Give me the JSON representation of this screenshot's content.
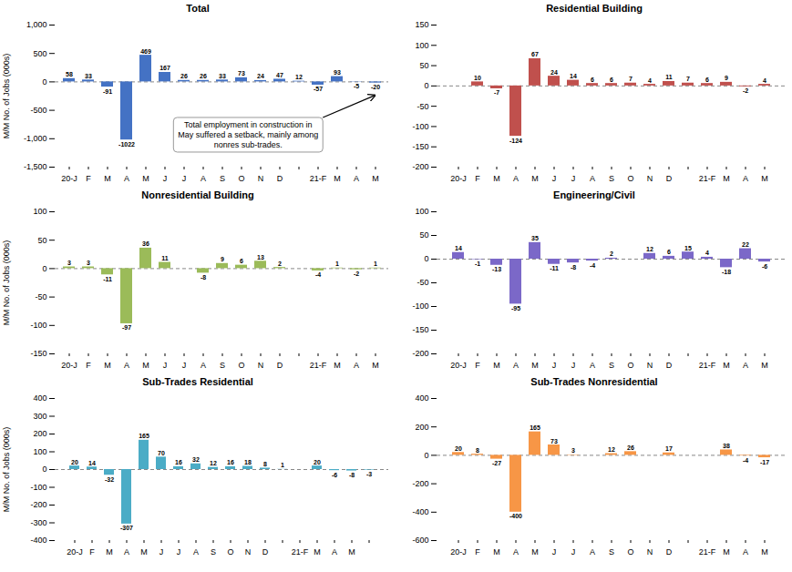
{
  "chart_data": [
    {
      "type": "bar",
      "title": "Total",
      "categories": [
        "20-J",
        "F",
        "M",
        "A",
        "M",
        "J",
        "J",
        "A",
        "S",
        "O",
        "N",
        "D",
        null,
        "21-F",
        "M",
        "A",
        "M"
      ],
      "values": [
        58,
        33,
        -91,
        -1022,
        469,
        167,
        26,
        26,
        33,
        73,
        24,
        47,
        12,
        -57,
        93,
        -5,
        -20
      ],
      "color": "#4472C4",
      "ylim": [
        -1500,
        1000
      ],
      "yticks": [
        {
          "value": -1500,
          "label": "-1,500"
        },
        {
          "value": -1000,
          "label": "-1,000"
        },
        -500,
        0,
        500,
        {
          "value": 1000,
          "label": "1,000"
        }
      ],
      "ylabel": "M/M No. of Jobs (000s)",
      "data_labels": true,
      "grid": false,
      "annotation": "Total employment in construction in\nMay suffered a setback, mainly among\nnonres sub-trades."
    },
    {
      "type": "bar",
      "title": "Residential Building",
      "categories": [
        "20-J",
        "F",
        "M",
        "A",
        "M",
        "J",
        "J",
        "A",
        "S",
        "O",
        "N",
        "D",
        null,
        "21-F",
        "M",
        "A",
        "M"
      ],
      "values": [
        0,
        10,
        -7,
        -124,
        67,
        24,
        14,
        6,
        6,
        7,
        4,
        11,
        7,
        6,
        9,
        -2,
        4
      ],
      "color": "#C0504D",
      "ylim": [
        -200,
        150
      ],
      "yticks": [
        -200,
        -150,
        -100,
        -50,
        0,
        50,
        100,
        150
      ],
      "data_labels": true,
      "grid": false
    },
    {
      "type": "bar",
      "title": "Nonresidential Building",
      "categories": [
        "20-J",
        "F",
        "M",
        "A",
        "M",
        "J",
        "J",
        "A",
        "S",
        "O",
        "N",
        "D",
        null,
        "21-F",
        "M",
        "A",
        "M"
      ],
      "values": [
        3,
        3,
        -11,
        -97,
        36,
        11,
        0,
        -8,
        9,
        6,
        13,
        2,
        0,
        -4,
        1,
        -2,
        1
      ],
      "color": "#9BBB59",
      "ylim": [
        -150,
        100
      ],
      "yticks": [
        -150,
        -100,
        -50,
        0,
        50,
        100
      ],
      "ylabel": "M/M No. of Jobs (000s)",
      "data_labels": true,
      "grid": false
    },
    {
      "type": "bar",
      "title": "Engineering/Civil",
      "categories": [
        "20-J",
        "F",
        "M",
        "A",
        "M",
        "J",
        "J",
        "A",
        "S",
        "O",
        "N",
        "D",
        null,
        "21-F",
        "M",
        "A",
        "M"
      ],
      "values": [
        14,
        -1,
        -13,
        -95,
        35,
        -11,
        -8,
        -4,
        2,
        0,
        12,
        6,
        15,
        4,
        -18,
        22,
        -6
      ],
      "color": "#7B68C8",
      "ylim": [
        -200,
        100
      ],
      "yticks": [
        -200,
        -150,
        -100,
        -50,
        0,
        50,
        100
      ],
      "data_labels": true,
      "grid": false
    },
    {
      "type": "bar",
      "title": "Sub-Trades Residential",
      "categories": [
        "20-J",
        "F",
        "M",
        "A",
        "M",
        "J",
        "J",
        "A",
        "S",
        "O",
        "N",
        "D",
        null,
        "21-F",
        "M",
        "A",
        "M",
        null
      ],
      "values": [
        20,
        14,
        -32,
        -307,
        165,
        70,
        16,
        32,
        12,
        16,
        18,
        8,
        1,
        0,
        20,
        -6,
        -8,
        -3
      ],
      "color": "#4BACC6",
      "ylim": [
        -400,
        400
      ],
      "yticks": [
        -400,
        -300,
        -200,
        -100,
        0,
        100,
        200,
        300,
        400
      ],
      "ylabel": "M/M No. of Jobs (000s)",
      "data_labels": true,
      "grid": false
    },
    {
      "type": "bar",
      "title": "Sub-Trades Nonresidential",
      "categories": [
        "20-J",
        "F",
        "M",
        "A",
        "M",
        "J",
        "J",
        "A",
        "S",
        "O",
        "N",
        "D",
        null,
        "21-F",
        "M",
        "A",
        "M"
      ],
      "values": [
        20,
        8,
        -27,
        -400,
        165,
        73,
        3,
        0,
        12,
        26,
        0,
        17,
        0,
        0,
        38,
        -4,
        -17
      ],
      "color": "#F79646",
      "ylim": [
        -600,
        400
      ],
      "yticks": [
        -600,
        -400,
        -200,
        0,
        200,
        400
      ],
      "data_labels": true,
      "grid": false
    }
  ]
}
